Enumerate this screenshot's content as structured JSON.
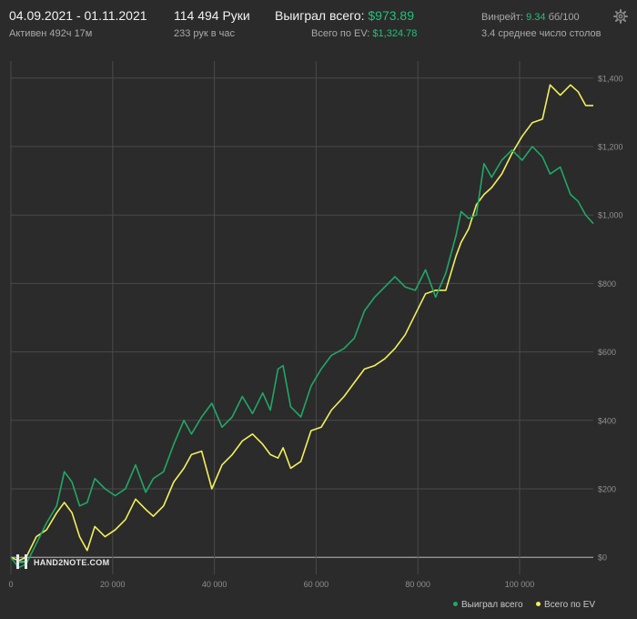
{
  "header": {
    "date_range": "04.09.2021 - 01.11.2021",
    "active_time": "Активен 492ч 17м",
    "hands_total": "114 494 Руки",
    "hands_per_hour": "233 рук в час",
    "won_total_label": "Выиграл всего:",
    "won_total_value": "$973.89",
    "ev_total_label": "Всего по EV:",
    "ev_total_value": "$1,324.78",
    "winrate_label": "Винрейт:",
    "winrate_value": "9.34",
    "winrate_unit": "бб/100",
    "avg_tables": "3.4 среднее число столов"
  },
  "watermark": {
    "text": "HAND2NOTE.COM"
  },
  "colors": {
    "background": "#2b2b2b",
    "won": "#20a868",
    "ev": "#f2f05a",
    "grid": "#555555",
    "accent_text": "#20c178"
  },
  "chart_data": {
    "type": "line",
    "x_ticks": [
      "0",
      "20 000",
      "40 000",
      "60 000",
      "80 000",
      "100 000"
    ],
    "y_ticks": [
      "$0",
      "$200",
      "$400",
      "$600",
      "$800",
      "$1,000",
      "$1,200",
      "$1,400"
    ],
    "xlim": [
      0,
      114494
    ],
    "ylim": [
      -50,
      1450
    ],
    "grid": true,
    "legend_position": "bottom-right",
    "series": [
      {
        "name": "Выиграл всего",
        "color": "#20a868",
        "x": [
          0,
          1500,
          3000,
          5000,
          7000,
          9000,
          10500,
          12000,
          13500,
          15000,
          16500,
          18500,
          20500,
          22500,
          24500,
          26500,
          28000,
          30000,
          32000,
          34000,
          35500,
          37500,
          39500,
          41500,
          43500,
          45500,
          47500,
          49500,
          51000,
          52500,
          53500,
          55000,
          57000,
          59000,
          61000,
          63000,
          65500,
          67500,
          69500,
          71500,
          73500,
          75500,
          77500,
          79500,
          81500,
          83500,
          85500,
          87500,
          88500,
          90000,
          91500,
          93000,
          94500,
          96500,
          98500,
          100500,
          102500,
          104500,
          106000,
          108000,
          110000,
          111500,
          113000,
          114494
        ],
        "y": [
          0,
          -30,
          -20,
          40,
          100,
          150,
          250,
          220,
          150,
          160,
          230,
          200,
          180,
          200,
          270,
          190,
          230,
          250,
          330,
          400,
          360,
          410,
          450,
          380,
          410,
          470,
          420,
          480,
          430,
          550,
          560,
          440,
          410,
          500,
          550,
          590,
          610,
          640,
          720,
          760,
          790,
          820,
          790,
          780,
          840,
          760,
          830,
          940,
          1010,
          990,
          1000,
          1150,
          1110,
          1160,
          1190,
          1160,
          1200,
          1170,
          1120,
          1140,
          1060,
          1040,
          1000,
          975
        ]
      },
      {
        "name": "Всего по EV",
        "color": "#f2f05a",
        "x": [
          0,
          1500,
          3000,
          5000,
          7000,
          9000,
          10500,
          12000,
          13500,
          15000,
          16500,
          18500,
          20500,
          22500,
          24500,
          26500,
          28000,
          30000,
          32000,
          34000,
          35500,
          37500,
          39500,
          41500,
          43500,
          45500,
          47500,
          49500,
          51000,
          52500,
          53500,
          55000,
          57000,
          59000,
          61000,
          63000,
          65500,
          67500,
          69500,
          71500,
          73500,
          75500,
          77500,
          79500,
          81500,
          83500,
          85500,
          87500,
          88500,
          90000,
          91500,
          93000,
          94500,
          96500,
          98500,
          100500,
          102500,
          104500,
          106000,
          108000,
          110000,
          111500,
          113000,
          114494
        ],
        "y": [
          0,
          -10,
          0,
          60,
          80,
          130,
          160,
          130,
          60,
          20,
          90,
          60,
          80,
          110,
          170,
          140,
          120,
          150,
          220,
          260,
          300,
          310,
          200,
          270,
          300,
          340,
          360,
          330,
          300,
          290,
          320,
          260,
          280,
          370,
          380,
          430,
          470,
          510,
          550,
          560,
          580,
          610,
          650,
          710,
          770,
          780,
          780,
          880,
          920,
          960,
          1030,
          1060,
          1080,
          1120,
          1180,
          1230,
          1270,
          1280,
          1380,
          1350,
          1380,
          1360,
          1320,
          1320
        ]
      }
    ]
  }
}
